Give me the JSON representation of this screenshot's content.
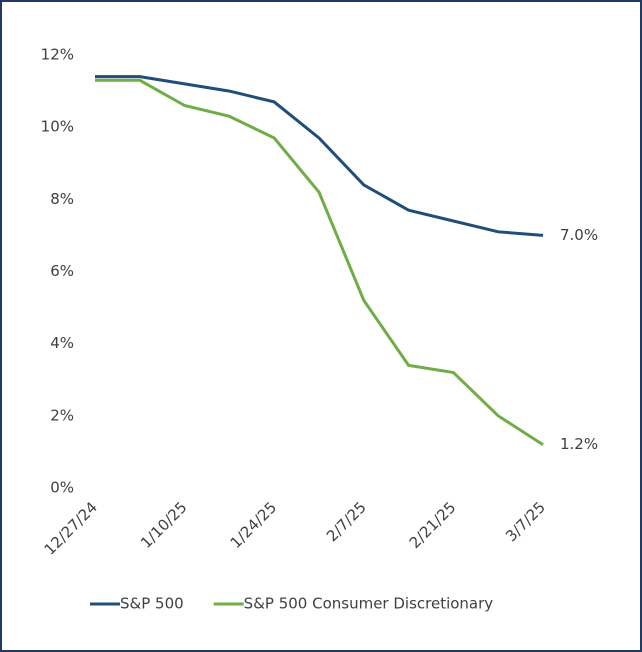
{
  "chart_data": {
    "type": "line",
    "categories": [
      "12/27/24",
      null,
      "1/10/25",
      null,
      "1/24/25",
      null,
      "2/7/25",
      null,
      "2/21/25",
      null,
      "3/7/25"
    ],
    "series": [
      {
        "name": "S&P 500",
        "color": "#1f4e79",
        "values": [
          11.4,
          11.4,
          11.2,
          11.0,
          10.7,
          9.7,
          8.4,
          7.7,
          7.4,
          7.1,
          7.0
        ],
        "value_labels": [
          null,
          null,
          null,
          null,
          null,
          null,
          null,
          null,
          null,
          null,
          "7.0%"
        ]
      },
      {
        "name": "S&P 500 Consumer Discretionary",
        "color": "#70ad47",
        "values": [
          11.3,
          11.3,
          10.6,
          10.3,
          9.7,
          8.2,
          5.2,
          3.4,
          3.2,
          2.0,
          1.2
        ],
        "value_labels": [
          null,
          null,
          null,
          null,
          null,
          null,
          null,
          null,
          null,
          null,
          "1.2%"
        ]
      }
    ],
    "ylim": [
      0,
      12
    ],
    "yticks": [
      {
        "value": 0,
        "label": "0%"
      },
      {
        "value": 2,
        "label": "2%"
      },
      {
        "value": 4,
        "label": "4%"
      },
      {
        "value": 6,
        "label": "6%"
      },
      {
        "value": 8,
        "label": "8%"
      },
      {
        "value": 10,
        "label": "10%"
      },
      {
        "value": 12,
        "label": "12%"
      }
    ],
    "grid": false,
    "legend": "bottom"
  }
}
